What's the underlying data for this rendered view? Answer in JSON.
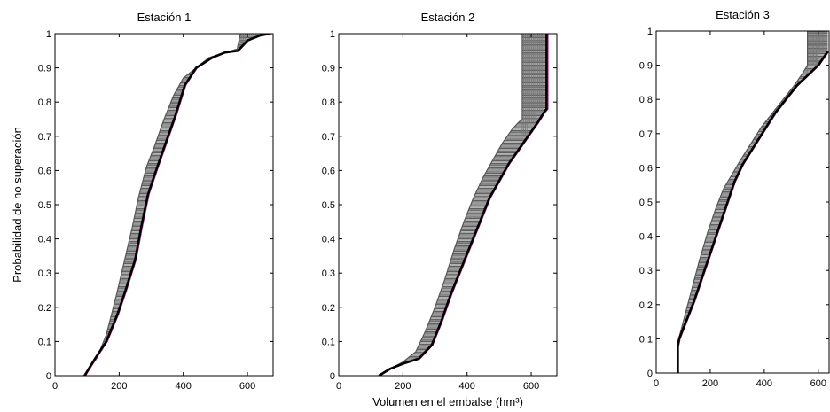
{
  "chart_data": [
    {
      "type": "line",
      "title": "Estación 1",
      "xlabel": "",
      "ylabel": "Probabilidad de no superación",
      "xlim": [
        0,
        680
      ],
      "ylim": [
        0,
        1
      ],
      "xticks": [
        0,
        200,
        400,
        600
      ],
      "yticks": [
        0,
        0.1,
        0.2,
        0.3,
        0.4,
        0.5,
        0.6,
        0.7,
        0.8,
        0.9,
        1
      ],
      "series": [
        {
          "color": "#4a4a4a",
          "role": "ensemble-left",
          "x": [
            90,
            130,
            160,
            190,
            215,
            240,
            260,
            285,
            310,
            340,
            370,
            400,
            440,
            480,
            530,
            568,
            578
          ],
          "y": [
            0,
            0.05,
            0.12,
            0.23,
            0.33,
            0.43,
            0.52,
            0.61,
            0.67,
            0.75,
            0.82,
            0.87,
            0.9,
            0.93,
            0.945,
            0.955,
            1.0
          ]
        },
        {
          "color": "#000000",
          "role": "observed",
          "x": [
            92,
            125,
            160,
            195,
            220,
            250,
            270,
            290,
            315,
            345,
            375,
            405,
            440,
            490,
            530,
            570,
            600,
            640,
            670
          ],
          "y": [
            0,
            0.05,
            0.1,
            0.18,
            0.25,
            0.34,
            0.44,
            0.53,
            0.6,
            0.68,
            0.76,
            0.85,
            0.9,
            0.93,
            0.945,
            0.95,
            0.98,
            0.995,
            1.0
          ]
        },
        {
          "color": "#cc3399",
          "role": "reference",
          "x": [
            95,
            128,
            163,
            198,
            223,
            253,
            273,
            293,
            318,
            348,
            378,
            408,
            443,
            493,
            533,
            573,
            603,
            643,
            675
          ],
          "y": [
            0,
            0.05,
            0.1,
            0.18,
            0.25,
            0.34,
            0.44,
            0.53,
            0.6,
            0.68,
            0.76,
            0.85,
            0.9,
            0.93,
            0.945,
            0.95,
            0.98,
            0.995,
            1.0
          ]
        }
      ]
    },
    {
      "type": "line",
      "title": "Estación 2",
      "xlabel": "Volumen en el embalse (hm³)",
      "ylabel": "",
      "xlim": [
        0,
        680
      ],
      "ylim": [
        0,
        1
      ],
      "xticks": [
        0,
        200,
        400,
        600
      ],
      "yticks": [
        0,
        0.1,
        0.2,
        0.3,
        0.4,
        0.5,
        0.6,
        0.7,
        0.8,
        0.9,
        1
      ],
      "series": [
        {
          "color": "#4a4a4a",
          "role": "ensemble-left",
          "x": [
            125,
            160,
            200,
            240,
            270,
            300,
            330,
            360,
            390,
            420,
            450,
            480,
            510,
            540,
            560,
            572,
            572
          ],
          "y": [
            0,
            0.02,
            0.04,
            0.07,
            0.13,
            0.2,
            0.28,
            0.37,
            0.45,
            0.52,
            0.58,
            0.63,
            0.68,
            0.72,
            0.74,
            0.75,
            1.0
          ]
        },
        {
          "color": "#000000",
          "role": "observed",
          "x": [
            125,
            160,
            200,
            250,
            290,
            320,
            350,
            380,
            410,
            440,
            470,
            500,
            530,
            560,
            590,
            620,
            640,
            648,
            648
          ],
          "y": [
            0,
            0.02,
            0.035,
            0.05,
            0.09,
            0.16,
            0.24,
            0.31,
            0.38,
            0.45,
            0.52,
            0.57,
            0.62,
            0.66,
            0.7,
            0.74,
            0.77,
            0.78,
            1.0
          ]
        },
        {
          "color": "#cc3399",
          "role": "reference",
          "x": [
            128,
            163,
            203,
            253,
            293,
            323,
            353,
            383,
            413,
            443,
            473,
            503,
            533,
            563,
            593,
            623,
            643,
            652,
            652
          ],
          "y": [
            0,
            0.02,
            0.035,
            0.05,
            0.09,
            0.16,
            0.24,
            0.31,
            0.38,
            0.45,
            0.52,
            0.57,
            0.62,
            0.66,
            0.7,
            0.74,
            0.77,
            0.78,
            1.0
          ]
        }
      ]
    },
    {
      "type": "line",
      "title": "Estación 3",
      "xlabel": "",
      "ylabel": "",
      "xlim": [
        0,
        640
      ],
      "ylim": [
        0,
        1
      ],
      "xticks": [
        0,
        200,
        400,
        600
      ],
      "yticks": [
        0,
        0.1,
        0.2,
        0.3,
        0.4,
        0.5,
        0.6,
        0.7,
        0.8,
        0.9,
        1
      ],
      "series": [
        {
          "color": "#4a4a4a",
          "role": "ensemble-left",
          "x": [
            80,
            100,
            130,
            160,
            190,
            220,
            250,
            280,
            310,
            350,
            390,
            430,
            470,
            510,
            545,
            560,
            560
          ],
          "y": [
            0.09,
            0.15,
            0.24,
            0.33,
            0.41,
            0.48,
            0.54,
            0.58,
            0.62,
            0.67,
            0.72,
            0.76,
            0.8,
            0.84,
            0.88,
            0.9,
            1.0
          ]
        },
        {
          "color": "#000000",
          "role": "observed",
          "x": [
            80,
            80,
            85,
            110,
            140,
            170,
            200,
            230,
            260,
            290,
            320,
            360,
            400,
            440,
            480,
            520,
            560,
            600,
            635
          ],
          "y": [
            0,
            0.08,
            0.1,
            0.15,
            0.21,
            0.28,
            0.35,
            0.42,
            0.49,
            0.56,
            0.61,
            0.66,
            0.71,
            0.76,
            0.8,
            0.84,
            0.87,
            0.9,
            0.94
          ]
        },
        {
          "color": "#cc3399",
          "role": "reference",
          "x": [
            83,
            88,
            113,
            143,
            173,
            203,
            233,
            263,
            293,
            323,
            363,
            403,
            443,
            483,
            523,
            563,
            603,
            638
          ],
          "y": [
            0.08,
            0.1,
            0.15,
            0.21,
            0.28,
            0.35,
            0.42,
            0.49,
            0.56,
            0.61,
            0.66,
            0.71,
            0.76,
            0.8,
            0.84,
            0.87,
            0.9,
            0.94
          ]
        }
      ]
    }
  ]
}
